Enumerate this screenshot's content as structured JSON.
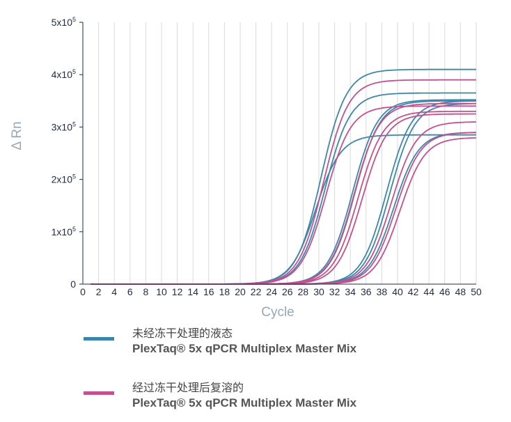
{
  "chart_data": {
    "type": "line",
    "xlabel": "Cycle",
    "ylabel": "Δ Rn",
    "xlim": [
      0,
      50
    ],
    "ylim": [
      0,
      500000
    ],
    "x_ticks": [
      "0",
      "2",
      "4",
      "6",
      "8",
      "10",
      "12",
      "14",
      "16",
      "18",
      "20",
      "22",
      "24",
      "26",
      "28",
      "30",
      "32",
      "34",
      "36",
      "38",
      "40",
      "42",
      "44",
      "46",
      "48",
      "50"
    ],
    "y_ticks": [
      {
        "value": 0,
        "base": "0",
        "exp": ""
      },
      {
        "value": 100000,
        "base": "1x10",
        "exp": "5"
      },
      {
        "value": 200000,
        "base": "2x10",
        "exp": "5"
      },
      {
        "value": 300000,
        "base": "3x10",
        "exp": "5"
      },
      {
        "value": 400000,
        "base": "4x10",
        "exp": "5"
      },
      {
        "value": 500000,
        "base": "5x10",
        "exp": "5"
      }
    ],
    "grid": "vertical",
    "legend_position": "bottom",
    "series": [
      {
        "name": "未经冻干处理的液态 PlexTaq® 5x qPCR Multiplex Master Mix",
        "color": "#3b86ad",
        "curves": [
          {
            "ct": 30.3,
            "plateau": 410000
          },
          {
            "ct": 30.8,
            "plateau": 365000
          },
          {
            "ct": 29.6,
            "plateau": 285000
          },
          {
            "ct": 34.3,
            "plateau": 352000
          },
          {
            "ct": 34.6,
            "plateau": 350000
          },
          {
            "ct": 38.6,
            "plateau": 350000
          },
          {
            "ct": 39.0,
            "plateau": 345000
          },
          {
            "ct": 39.5,
            "plateau": 290000
          }
        ]
      },
      {
        "name": "经过冻干处理后复溶的 PlexTaq® 5x qPCR Multiplex Master Mix",
        "color": "#c64f8d",
        "curves": [
          {
            "ct": 30.6,
            "plateau": 390000
          },
          {
            "ct": 30.9,
            "plateau": 340000
          },
          {
            "ct": 34.5,
            "plateau": 345000
          },
          {
            "ct": 35.0,
            "plateau": 330000
          },
          {
            "ct": 35.5,
            "plateau": 325000
          },
          {
            "ct": 39.2,
            "plateau": 310000
          },
          {
            "ct": 39.8,
            "plateau": 290000
          },
          {
            "ct": 40.3,
            "plateau": 280000
          }
        ]
      }
    ]
  },
  "legend": [
    {
      "line1": "未经冻干处理的液态",
      "line2": "PlexTaq® 5x qPCR Multiplex Master Mix",
      "color": "#3b86ad"
    },
    {
      "line1": "经过冻干处理后复溶的",
      "line2": "PlexTaq® 5x qPCR Multiplex Master Mix",
      "color": "#c64f8d"
    }
  ]
}
